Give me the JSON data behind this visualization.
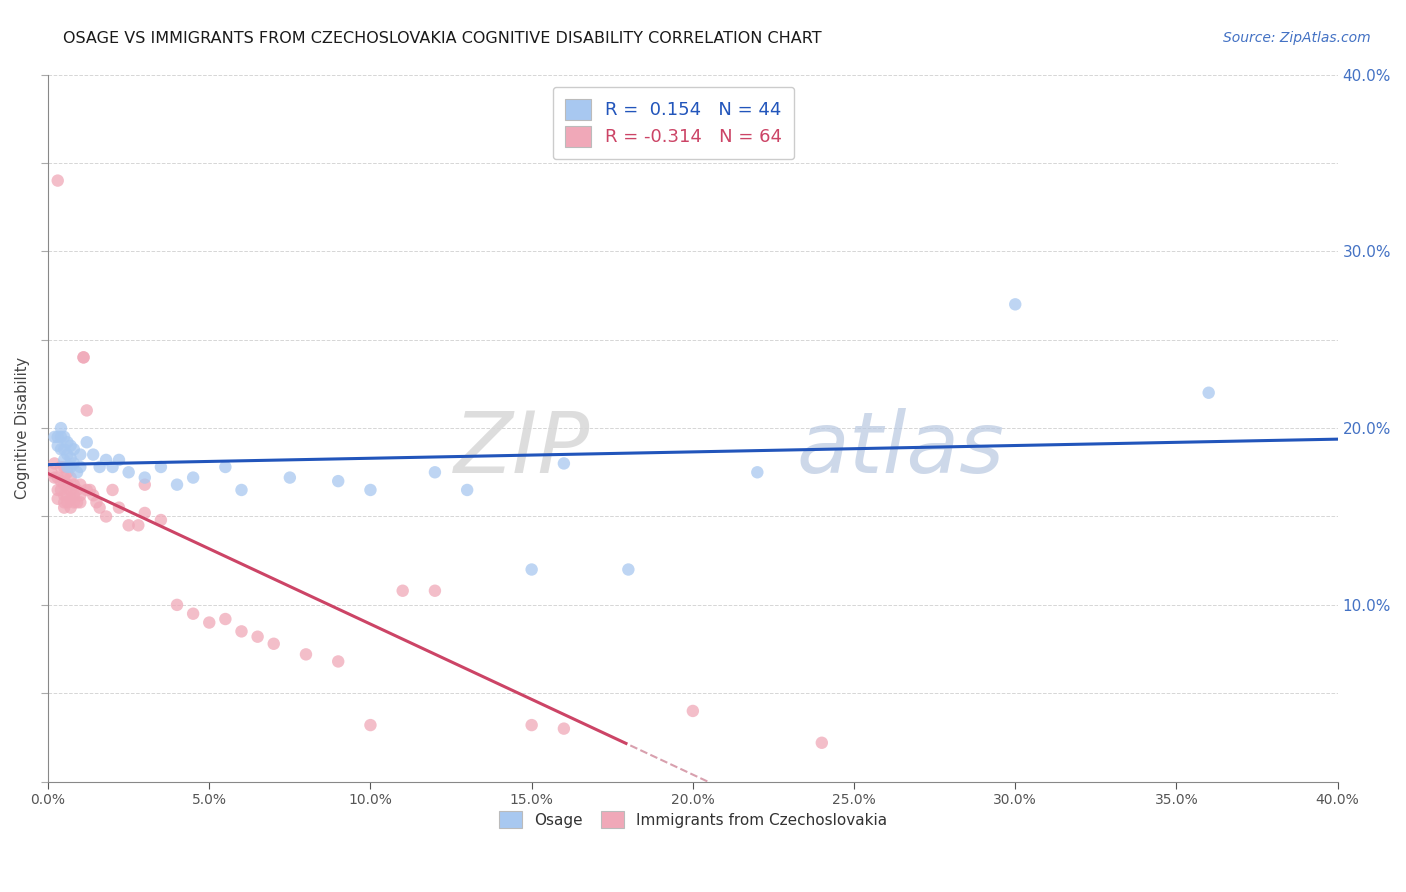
{
  "title": "OSAGE VS IMMIGRANTS FROM CZECHOSLOVAKIA COGNITIVE DISABILITY CORRELATION CHART",
  "source": "Source: ZipAtlas.com",
  "ylabel": "Cognitive Disability",
  "xmin": 0.0,
  "xmax": 0.4,
  "ymin": 0.0,
  "ymax": 0.4,
  "watermark_zip": "ZIP",
  "watermark_atlas": "atlas",
  "legend_blue_R": "0.154",
  "legend_blue_N": "44",
  "legend_pink_R": "-0.314",
  "legend_pink_N": "64",
  "legend_label_blue": "Osage",
  "legend_label_pink": "Immigrants from Czechoslovakia",
  "blue_scatter_color": "#A8C8F0",
  "pink_scatter_color": "#F0A8B8",
  "line_blue_color": "#2255BB",
  "line_pink_color": "#CC4466",
  "line_pink_dash_color": "#D8A0AE",
  "right_axis_color": "#4472C4",
  "osage_x": [
    0.002,
    0.003,
    0.003,
    0.004,
    0.004,
    0.004,
    0.005,
    0.005,
    0.005,
    0.006,
    0.006,
    0.006,
    0.007,
    0.007,
    0.007,
    0.008,
    0.008,
    0.009,
    0.01,
    0.01,
    0.012,
    0.014,
    0.016,
    0.018,
    0.02,
    0.022,
    0.025,
    0.03,
    0.035,
    0.04,
    0.045,
    0.055,
    0.06,
    0.075,
    0.09,
    0.1,
    0.12,
    0.13,
    0.15,
    0.16,
    0.18,
    0.22,
    0.3,
    0.36
  ],
  "osage_y": [
    0.195,
    0.195,
    0.19,
    0.2,
    0.195,
    0.188,
    0.195,
    0.188,
    0.182,
    0.192,
    0.185,
    0.178,
    0.19,
    0.183,
    0.178,
    0.188,
    0.18,
    0.175,
    0.185,
    0.178,
    0.192,
    0.185,
    0.178,
    0.182,
    0.178,
    0.182,
    0.175,
    0.172,
    0.178,
    0.168,
    0.172,
    0.178,
    0.165,
    0.172,
    0.17,
    0.165,
    0.175,
    0.165,
    0.12,
    0.18,
    0.12,
    0.175,
    0.27,
    0.22
  ],
  "czech_x": [
    0.001,
    0.002,
    0.002,
    0.003,
    0.003,
    0.003,
    0.003,
    0.004,
    0.004,
    0.004,
    0.005,
    0.005,
    0.005,
    0.005,
    0.005,
    0.005,
    0.006,
    0.006,
    0.006,
    0.006,
    0.007,
    0.007,
    0.007,
    0.007,
    0.008,
    0.008,
    0.008,
    0.009,
    0.009,
    0.01,
    0.01,
    0.01,
    0.011,
    0.011,
    0.012,
    0.012,
    0.013,
    0.014,
    0.015,
    0.016,
    0.018,
    0.02,
    0.022,
    0.025,
    0.028,
    0.03,
    0.03,
    0.035,
    0.04,
    0.045,
    0.05,
    0.055,
    0.06,
    0.065,
    0.07,
    0.08,
    0.09,
    0.1,
    0.11,
    0.12,
    0.15,
    0.16,
    0.2,
    0.24
  ],
  "czech_y": [
    0.175,
    0.18,
    0.172,
    0.34,
    0.172,
    0.165,
    0.16,
    0.178,
    0.17,
    0.165,
    0.178,
    0.172,
    0.168,
    0.162,
    0.158,
    0.155,
    0.175,
    0.168,
    0.162,
    0.158,
    0.172,
    0.165,
    0.16,
    0.155,
    0.168,
    0.162,
    0.158,
    0.165,
    0.158,
    0.168,
    0.162,
    0.158,
    0.24,
    0.24,
    0.165,
    0.21,
    0.165,
    0.162,
    0.158,
    0.155,
    0.15,
    0.165,
    0.155,
    0.145,
    0.145,
    0.152,
    0.168,
    0.148,
    0.1,
    0.095,
    0.09,
    0.092,
    0.085,
    0.082,
    0.078,
    0.072,
    0.068,
    0.032,
    0.108,
    0.108,
    0.032,
    0.03,
    0.04,
    0.022
  ]
}
